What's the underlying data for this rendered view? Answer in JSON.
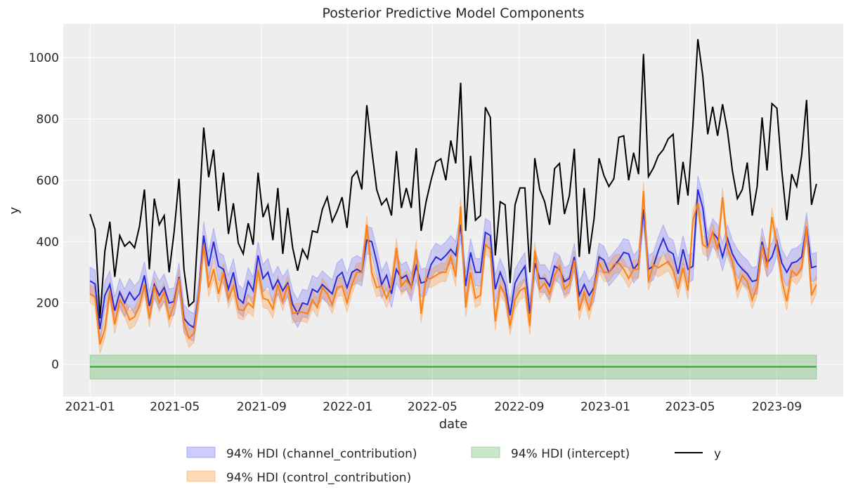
{
  "chart_data": {
    "type": "line",
    "title": "Posterior Predictive Model Components",
    "xlabel": "date",
    "ylabel": "y",
    "ylim": [
      -105,
      1110
    ],
    "xlim": [
      "2020-11-24",
      "2023-12-04"
    ],
    "grid": true,
    "x_ticks": [
      "2021-01",
      "2021-05",
      "2021-09",
      "2022-01",
      "2022-05",
      "2022-09",
      "2023-01",
      "2023-05",
      "2023-09"
    ],
    "y_ticks": [
      0,
      200,
      400,
      600,
      800,
      1000
    ],
    "legend_placement": "bottom-center",
    "legend": [
      {
        "label": "94% HDI (channel_contribution)",
        "kind": "band",
        "color": "#3333ff"
      },
      {
        "label": "94% HDI (control_contribution)",
        "kind": "band",
        "color": "#ff7f0e"
      },
      {
        "label": "94% HDI (intercept)",
        "kind": "band",
        "color": "#2ca02c"
      },
      {
        "label": "y",
        "kind": "line",
        "color": "#000000"
      }
    ],
    "x_start": "2021-01-01",
    "x_step_days": 7,
    "series": [
      {
        "name": "y",
        "color": "#000000",
        "values": [
          490,
          440,
          150,
          370,
          465,
          285,
          420,
          385,
          400,
          380,
          450,
          570,
          310,
          540,
          455,
          485,
          300,
          430,
          605,
          310,
          190,
          205,
          480,
          772,
          610,
          700,
          500,
          625,
          425,
          525,
          395,
          360,
          460,
          390,
          625,
          480,
          520,
          405,
          575,
          360,
          510,
          380,
          305,
          375,
          345,
          435,
          430,
          505,
          545,
          465,
          500,
          545,
          445,
          610,
          630,
          570,
          845,
          700,
          570,
          520,
          540,
          485,
          695,
          510,
          575,
          510,
          705,
          435,
          530,
          600,
          660,
          670,
          600,
          730,
          655,
          918,
          435,
          680,
          470,
          485,
          838,
          805,
          355,
          530,
          520,
          265,
          520,
          575,
          575,
          300,
          672,
          570,
          530,
          455,
          638,
          655,
          490,
          550,
          703,
          350,
          575,
          360,
          475,
          672,
          615,
          580,
          605,
          740,
          745,
          600,
          690,
          620,
          1012,
          612,
          640,
          680,
          700,
          735,
          750,
          520,
          660,
          550,
          780,
          1060,
          940,
          750,
          840,
          745,
          848,
          760,
          630,
          540,
          570,
          658,
          485,
          580,
          805,
          632,
          850,
          835,
          630,
          470,
          620,
          580,
          680,
          862,
          520,
          588
        ]
      },
      {
        "name": "",
        "band_label": "94% HDI (channel_contribution)",
        "color": "#2b2bd6",
        "band_color": "#3333ff",
        "values": [
          272,
          262,
          115,
          225,
          260,
          175,
          235,
          200,
          235,
          210,
          230,
          290,
          190,
          260,
          225,
          250,
          200,
          205,
          285,
          150,
          130,
          120,
          230,
          420,
          320,
          400,
          320,
          310,
          245,
          300,
          215,
          200,
          270,
          240,
          355,
          280,
          300,
          245,
          275,
          240,
          265,
          195,
          165,
          200,
          195,
          245,
          235,
          260,
          245,
          230,
          285,
          300,
          250,
          300,
          310,
          300,
          405,
          400,
          335,
          260,
          290,
          230,
          310,
          280,
          290,
          250,
          320,
          265,
          270,
          325,
          350,
          340,
          355,
          375,
          355,
          455,
          255,
          365,
          300,
          300,
          430,
          420,
          245,
          300,
          260,
          160,
          265,
          295,
          320,
          165,
          330,
          280,
          280,
          255,
          320,
          310,
          270,
          280,
          350,
          225,
          260,
          225,
          250,
          350,
          340,
          300,
          320,
          340,
          365,
          360,
          310,
          330,
          505,
          310,
          320,
          370,
          410,
          370,
          360,
          295,
          375,
          310,
          320,
          570,
          510,
          380,
          430,
          410,
          350,
          410,
          360,
          330,
          310,
          295,
          270,
          275,
          400,
          330,
          350,
          400,
          330,
          300,
          330,
          335,
          350,
          450,
          315,
          320
        ],
        "band_half_width": 45
      },
      {
        "name": "",
        "band_label": "94% HDI (control_contribution)",
        "color": "#ff7f0e",
        "band_color": "#ff7f0e",
        "values": [
          230,
          220,
          65,
          115,
          240,
          130,
          210,
          185,
          145,
          155,
          190,
          260,
          150,
          255,
          200,
          235,
          150,
          195,
          280,
          135,
          85,
          100,
          225,
          390,
          250,
          310,
          230,
          300,
          215,
          255,
          180,
          175,
          200,
          185,
          305,
          215,
          210,
          180,
          260,
          205,
          260,
          165,
          170,
          170,
          165,
          210,
          185,
          250,
          230,
          195,
          250,
          255,
          200,
          260,
          300,
          300,
          455,
          300,
          250,
          255,
          215,
          255,
          380,
          255,
          275,
          250,
          375,
          165,
          280,
          280,
          290,
          300,
          300,
          350,
          285,
          515,
          185,
          300,
          215,
          225,
          390,
          375,
          140,
          255,
          230,
          125,
          210,
          240,
          250,
          125,
          370,
          245,
          265,
          230,
          290,
          320,
          245,
          260,
          340,
          175,
          235,
          175,
          245,
          330,
          300,
          300,
          325,
          330,
          310,
          280,
          310,
          310,
          565,
          270,
          325,
          315,
          325,
          335,
          305,
          245,
          315,
          240,
          470,
          525,
          390,
          380,
          430,
          375,
          545,
          380,
          335,
          245,
          290,
          270,
          210,
          255,
          390,
          315,
          480,
          390,
          275,
          205,
          305,
          290,
          315,
          450,
          225,
          260
        ],
        "band_half_width": 30
      },
      {
        "name": "",
        "band_label": "94% HDI (intercept)",
        "color": "#2ca02c",
        "band_color": "#2ca02c",
        "values_constant": -8,
        "band": [
          -48,
          30
        ]
      }
    ]
  }
}
